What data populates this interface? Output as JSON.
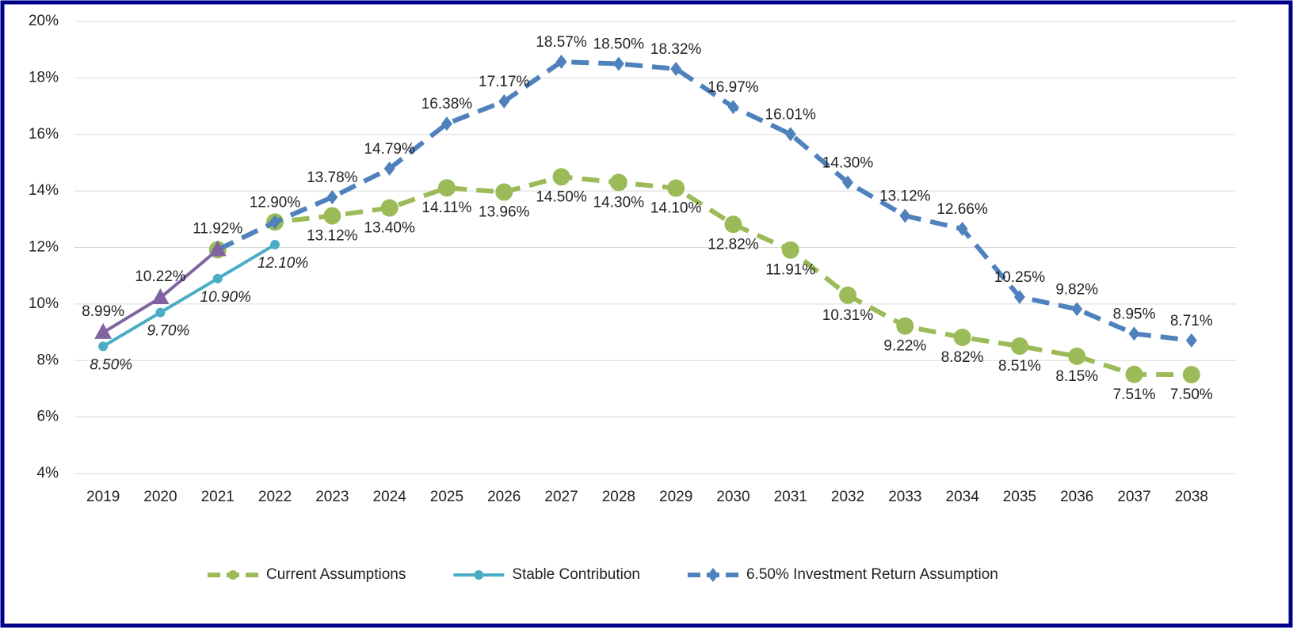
{
  "chart_data": {
    "type": "line",
    "categories": [
      "2019",
      "2020",
      "2021",
      "2022",
      "2023",
      "2024",
      "2025",
      "2026",
      "2027",
      "2028",
      "2029",
      "2030",
      "2031",
      "2032",
      "2033",
      "2034",
      "2035",
      "2036",
      "2037",
      "2038"
    ],
    "ylim": [
      4,
      20
    ],
    "yticks": [
      {
        "value": 4,
        "label": "4%"
      },
      {
        "value": 6,
        "label": "6%"
      },
      {
        "value": 8,
        "label": "8%"
      },
      {
        "value": 10,
        "label": "10%"
      },
      {
        "value": 12,
        "label": "12%"
      },
      {
        "value": 14,
        "label": "14%"
      },
      {
        "value": 16,
        "label": "16%"
      },
      {
        "value": 18,
        "label": "18%"
      },
      {
        "value": 20,
        "label": "20%"
      }
    ],
    "grid": true,
    "legend": "bottom",
    "series": [
      {
        "name": "Current Assumptions",
        "color": "#9bbb59",
        "dashed": true,
        "marker": "circle",
        "values": [
          null,
          null,
          11.92,
          12.9,
          13.12,
          13.4,
          14.11,
          13.96,
          14.5,
          14.3,
          14.1,
          12.82,
          11.91,
          10.31,
          9.22,
          8.82,
          8.51,
          8.15,
          7.51,
          7.5
        ],
        "value_labels": [
          null,
          null,
          null,
          null,
          "13.12%",
          "13.40%",
          "14.11%",
          "13.96%",
          "14.50%",
          "14.30%",
          "14.10%",
          "12.82%",
          "11.91%",
          "10.31%",
          "9.22%",
          "8.82%",
          "8.51%",
          "8.15%",
          "7.51%",
          "7.50%"
        ]
      },
      {
        "name": "Stable Contribution",
        "color": "#4bacc6",
        "dashed": false,
        "marker": "dot",
        "values": [
          8.5,
          9.7,
          10.9,
          12.1,
          null,
          null,
          null,
          null,
          null,
          null,
          null,
          null,
          null,
          null,
          null,
          null,
          null,
          null,
          null,
          null
        ],
        "value_labels": [
          "8.50%",
          "9.70%",
          "10.90%",
          "12.10%",
          null,
          null,
          null,
          null,
          null,
          null,
          null,
          null,
          null,
          null,
          null,
          null,
          null,
          null,
          null,
          null
        ]
      },
      {
        "name": "6.50% Investment Return Assumption",
        "color": "#4f81bd",
        "dashed": true,
        "marker": "diamond",
        "values": [
          null,
          null,
          11.92,
          12.9,
          13.78,
          14.79,
          16.38,
          17.17,
          18.57,
          18.5,
          18.32,
          16.97,
          16.01,
          14.3,
          13.12,
          12.66,
          10.25,
          9.82,
          8.95,
          8.71
        ],
        "value_labels": [
          null,
          null,
          null,
          "12.90%",
          "13.78%",
          "14.79%",
          "16.38%",
          "17.17%",
          "18.57%",
          "18.50%",
          "18.32%",
          "16.97%",
          "16.01%",
          "14.30%",
          "13.12%",
          "12.66%",
          "10.25%",
          "9.82%",
          "8.95%",
          "8.71%"
        ]
      },
      {
        "color": "#8064a2",
        "dashed": false,
        "marker": "triangle",
        "values": [
          8.99,
          10.22,
          11.92,
          null,
          null,
          null,
          null,
          null,
          null,
          null,
          null,
          null,
          null,
          null,
          null,
          null,
          null,
          null,
          null,
          null
        ],
        "value_labels": [
          "8.99%",
          "10.22%",
          "11.92%",
          null,
          null,
          null,
          null,
          null,
          null,
          null,
          null,
          null,
          null,
          null,
          null,
          null,
          null,
          null,
          null,
          null
        ]
      }
    ]
  }
}
